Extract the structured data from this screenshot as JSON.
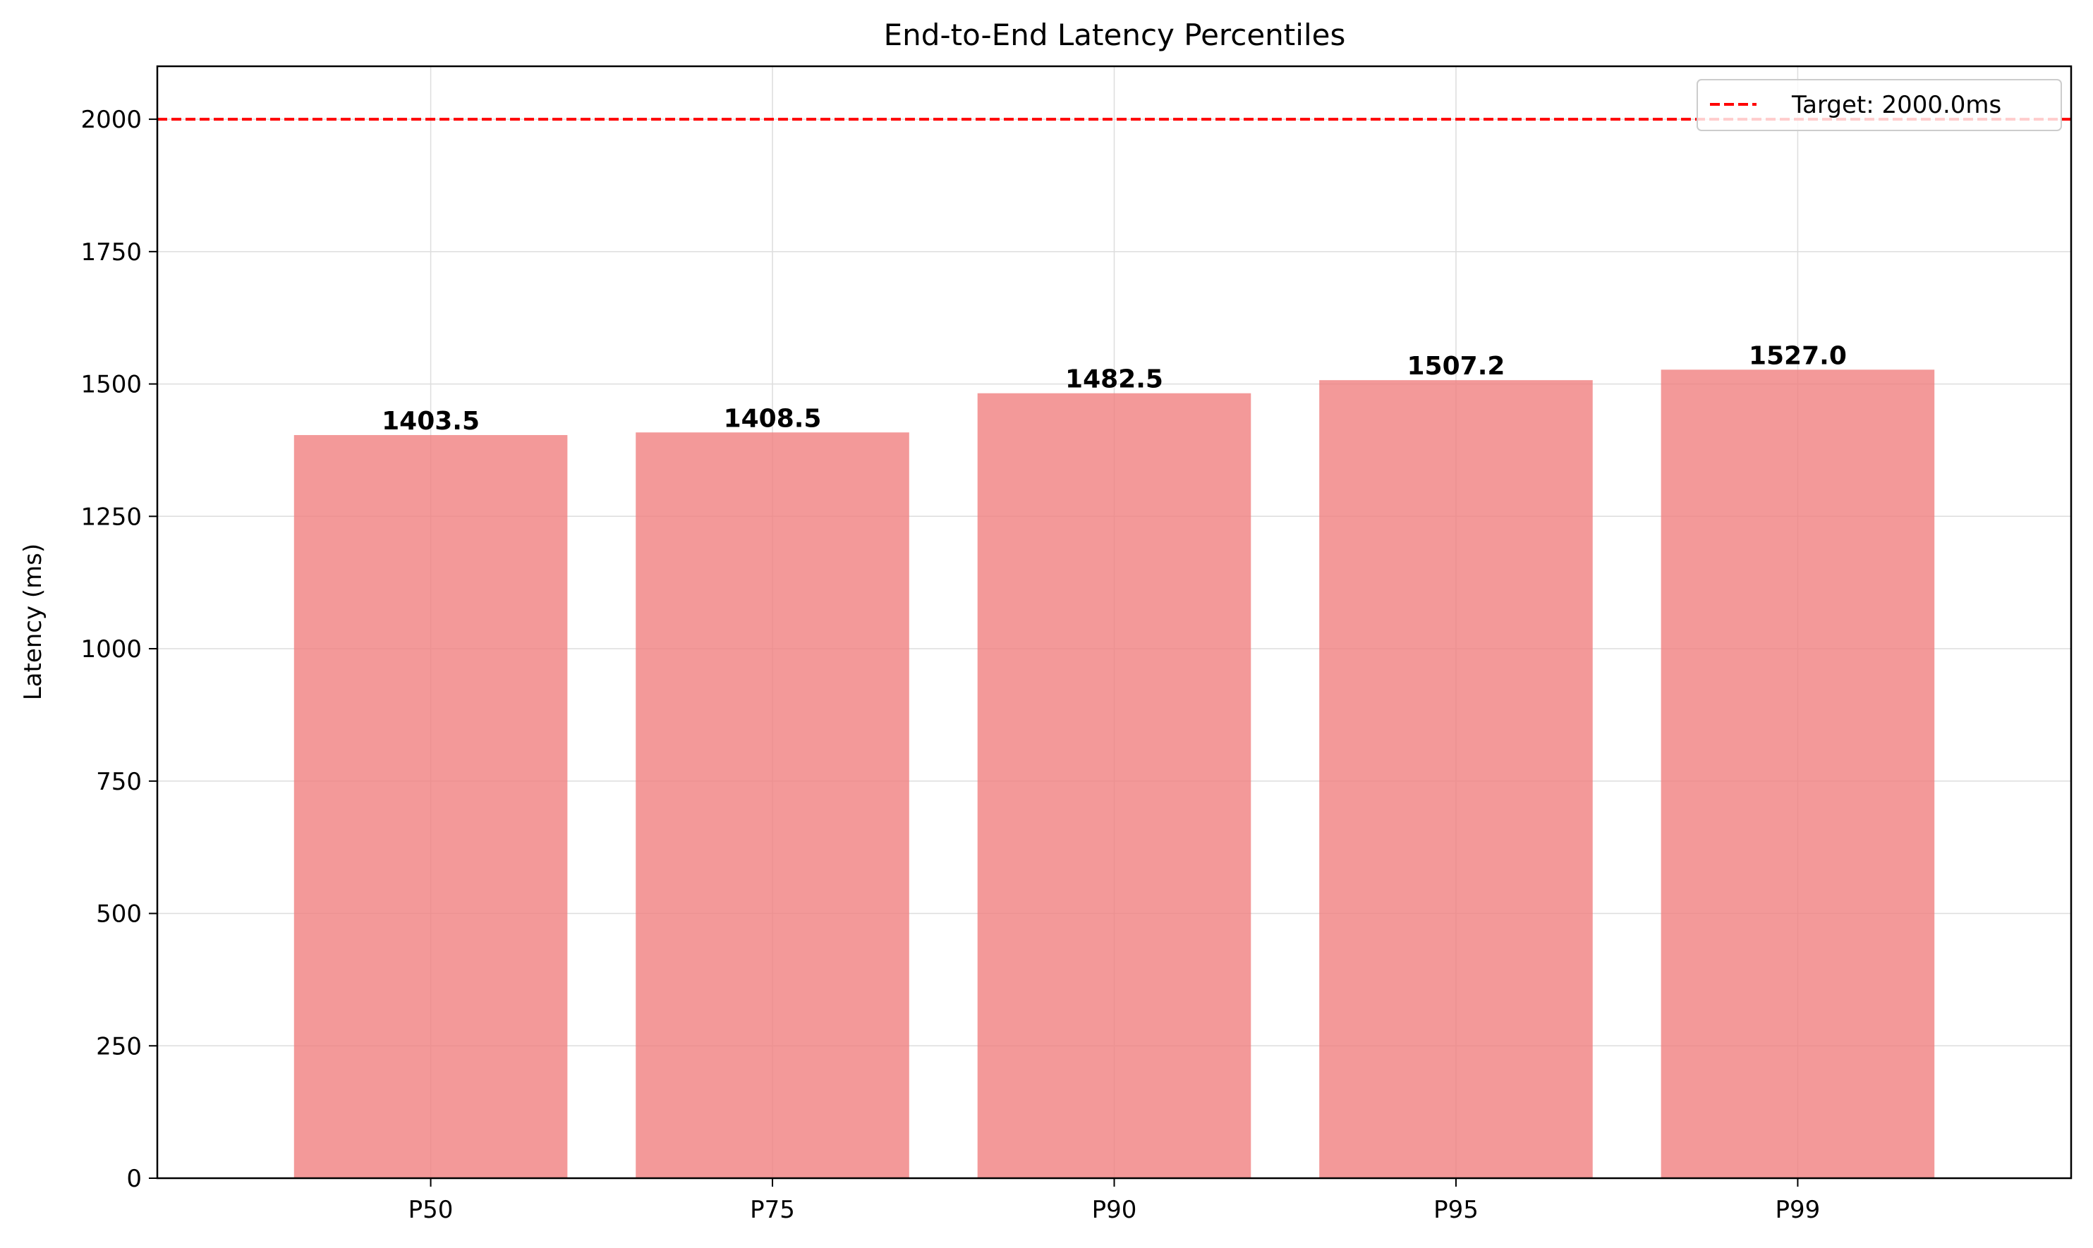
{
  "chart_data": {
    "type": "bar",
    "title": "End-to-End Latency Percentiles",
    "xlabel": "",
    "ylabel": "Latency (ms)",
    "categories": [
      "P50",
      "P75",
      "P90",
      "P95",
      "P99"
    ],
    "values": [
      1403.5,
      1408.5,
      1482.5,
      1507.2,
      1527.0
    ],
    "value_labels": [
      "1403.5",
      "1408.5",
      "1482.5",
      "1507.2",
      "1527.0"
    ],
    "ylim": [
      0,
      2100
    ],
    "yticks": [
      0,
      250,
      500,
      750,
      1000,
      1250,
      1500,
      1750,
      2000
    ],
    "grid": true,
    "bar_color": "#f08080",
    "target_line": {
      "value": 2000,
      "label": "Target: 2000.0ms",
      "color": "#ff0000",
      "style": "dashed"
    },
    "legend": {
      "position": "top-right"
    }
  }
}
